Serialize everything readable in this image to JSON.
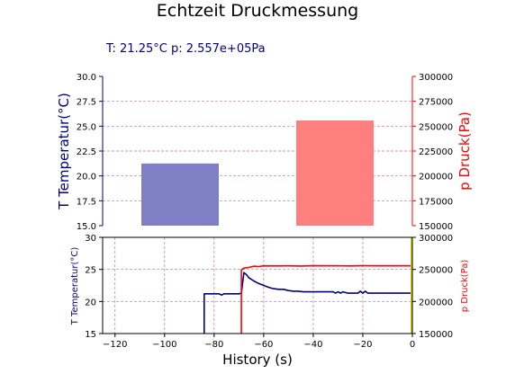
{
  "title": "Echtzeit Druckmessung",
  "readout": "T:  21.25°C  p:  2.557e+05Pa",
  "colors": {
    "temperature": "#000080",
    "pressure": "#ff0000",
    "temp_bar": "#7f7fc4",
    "pressure_bar": "#ff7f7f",
    "grid": "#c76d9c",
    "marker": "#d4d400"
  },
  "chart_data": [
    {
      "type": "bar",
      "xlabel": "",
      "left_axis": {
        "label": "T Temperatur(°C)",
        "ylim": [
          15.0,
          30.0
        ],
        "ticks": [
          "15.0",
          "17.5",
          "20.0",
          "22.5",
          "25.0",
          "27.5",
          "30.0"
        ]
      },
      "right_axis": {
        "label": "p Druck(Pa)",
        "ylim": [
          150000,
          300000
        ],
        "ticks": [
          "150000",
          "175000",
          "200000",
          "225000",
          "250000",
          "275000",
          "300000"
        ]
      },
      "grid": true,
      "values": {
        "temperature": 21.25,
        "pressure": 255700
      }
    },
    {
      "type": "line",
      "xlabel": "History (s)",
      "xlim": [
        -125,
        0
      ],
      "x_ticks": [
        "−120",
        "−100",
        "−80",
        "−60",
        "−40",
        "−20",
        "0"
      ],
      "left_axis": {
        "label": "T Temperatur(°C)",
        "ylim": [
          15,
          30
        ],
        "ticks": [
          "15",
          "20",
          "25",
          "30"
        ]
      },
      "right_axis": {
        "label": "p Druck(Pa)",
        "ylim": [
          150000,
          300000
        ],
        "ticks": [
          "150000",
          "200000",
          "250000",
          "300000"
        ]
      },
      "grid": true,
      "series": [
        {
          "axis": "left",
          "x": [
            -84,
            -84,
            -78,
            -77,
            -76,
            -74,
            -72,
            -70,
            -69,
            -68,
            -67,
            -66,
            -64,
            -62,
            -60,
            -58,
            -56,
            -54,
            -52,
            -50,
            -48,
            -46,
            -44,
            -40,
            -36,
            -32,
            -31,
            -30,
            -29,
            -28,
            -26,
            -22,
            -21,
            -20,
            -19,
            -18,
            -14,
            -10,
            -6,
            -2,
            0
          ],
          "y": [
            15,
            21.2,
            21.2,
            21.0,
            21.2,
            21.2,
            21.2,
            21.2,
            21.3,
            24.5,
            24.2,
            23.7,
            23.2,
            22.8,
            22.5,
            22.2,
            22.0,
            21.9,
            21.9,
            21.7,
            21.6,
            21.6,
            21.5,
            21.5,
            21.5,
            21.5,
            21.3,
            21.5,
            21.3,
            21.5,
            21.3,
            21.3,
            21.6,
            21.3,
            21.6,
            21.3,
            21.3,
            21.3,
            21.3,
            21.3,
            21.3
          ]
        },
        {
          "axis": "right",
          "x": [
            -69,
            -69,
            -68,
            -66,
            -64,
            -62,
            -60,
            -55,
            -50,
            -45,
            -40,
            -35,
            -30,
            -25,
            -20,
            -15,
            -10,
            -5,
            0
          ],
          "y": [
            150000,
            249000,
            252000,
            253000,
            255000,
            254500,
            255500,
            255400,
            255600,
            255300,
            255700,
            255500,
            255600,
            255400,
            255700,
            255500,
            255600,
            255500,
            255600
          ]
        }
      ],
      "marker_x": 0
    }
  ]
}
